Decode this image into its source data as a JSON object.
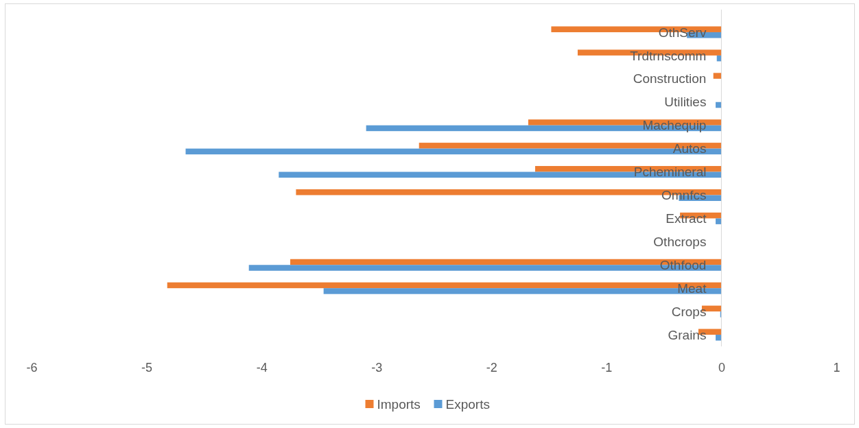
{
  "chart_data": {
    "type": "bar",
    "orientation": "horizontal",
    "categories": [
      "OthServ",
      "Trdtrnscomm",
      "Construction",
      "Utilities",
      "Machequip",
      "Autos",
      "Pchemineral",
      "Omnfcs",
      "Extract",
      "Othcrops",
      "Othfood",
      "Meat",
      "Crops",
      "Grains"
    ],
    "series": [
      {
        "name": "Imports",
        "color": "#ed7d31",
        "values": [
          -1.48,
          -1.25,
          -0.07,
          0,
          -1.68,
          -2.63,
          -1.62,
          -3.7,
          -0.36,
          0,
          -3.75,
          -4.82,
          -0.17,
          -0.2
        ]
      },
      {
        "name": "Exports",
        "color": "#5b9bd5",
        "values": [
          -0.3,
          -0.04,
          0,
          -0.05,
          -3.09,
          -4.66,
          -3.85,
          -0.37,
          -0.05,
          0,
          -4.11,
          -3.46,
          -0.01,
          -0.05
        ]
      }
    ],
    "xlim": [
      -6,
      1
    ],
    "xticks": [
      -6,
      -5,
      -4,
      -3,
      -2,
      -1,
      0,
      1
    ],
    "grid": false,
    "legend": "bottom"
  }
}
